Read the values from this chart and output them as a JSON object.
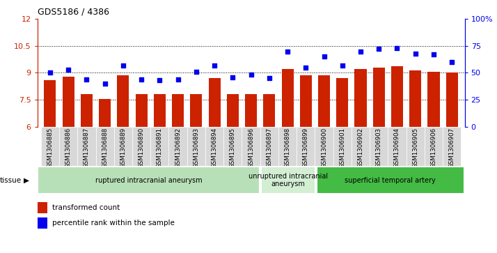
{
  "title": "GDS5186 / 4386",
  "samples": [
    "GSM1306885",
    "GSM1306886",
    "GSM1306887",
    "GSM1306888",
    "GSM1306889",
    "GSM1306890",
    "GSM1306891",
    "GSM1306892",
    "GSM1306893",
    "GSM1306894",
    "GSM1306895",
    "GSM1306896",
    "GSM1306897",
    "GSM1306898",
    "GSM1306899",
    "GSM1306900",
    "GSM1306901",
    "GSM1306902",
    "GSM1306903",
    "GSM1306904",
    "GSM1306905",
    "GSM1306906",
    "GSM1306907"
  ],
  "bar_values": [
    8.6,
    8.8,
    7.8,
    7.55,
    8.85,
    7.8,
    7.8,
    7.8,
    7.8,
    8.7,
    7.8,
    7.8,
    7.8,
    9.2,
    8.85,
    8.85,
    8.7,
    9.2,
    9.3,
    9.35,
    9.15,
    9.05,
    9.0
  ],
  "dot_values_pct": [
    50,
    53,
    44,
    40,
    57,
    44,
    43,
    44,
    51,
    57,
    46,
    48,
    45,
    70,
    55,
    65,
    57,
    70,
    72,
    73,
    68,
    67,
    60
  ],
  "ylim_left": [
    6,
    12
  ],
  "ylim_right": [
    0,
    100
  ],
  "yticks_left": [
    6,
    7.5,
    9.0,
    10.5,
    12
  ],
  "yticks_right": [
    0,
    25,
    50,
    75,
    100
  ],
  "ytick_labels_left": [
    "6",
    "7.5",
    "9",
    "10.5",
    "12"
  ],
  "ytick_labels_right": [
    "0",
    "25",
    "50",
    "75",
    "100%"
  ],
  "bar_color": "#cc2200",
  "dot_color": "#0000ee",
  "groups": [
    {
      "label": "ruptured intracranial aneurysm",
      "start": 0,
      "end": 12,
      "color": "#b8e0b8"
    },
    {
      "label": "unruptured intracranial\naneurysm",
      "start": 12,
      "end": 15,
      "color": "#d4eed4"
    },
    {
      "label": "superficial temporal artery",
      "start": 15,
      "end": 23,
      "color": "#44bb44"
    }
  ],
  "legend_bar_label": "transformed count",
  "legend_dot_label": "percentile rank within the sample",
  "tissue_label": "tissue",
  "hgrid_lines": [
    7.5,
    9.0,
    10.5
  ],
  "xlabel_bg_color": "#d8d8d8"
}
